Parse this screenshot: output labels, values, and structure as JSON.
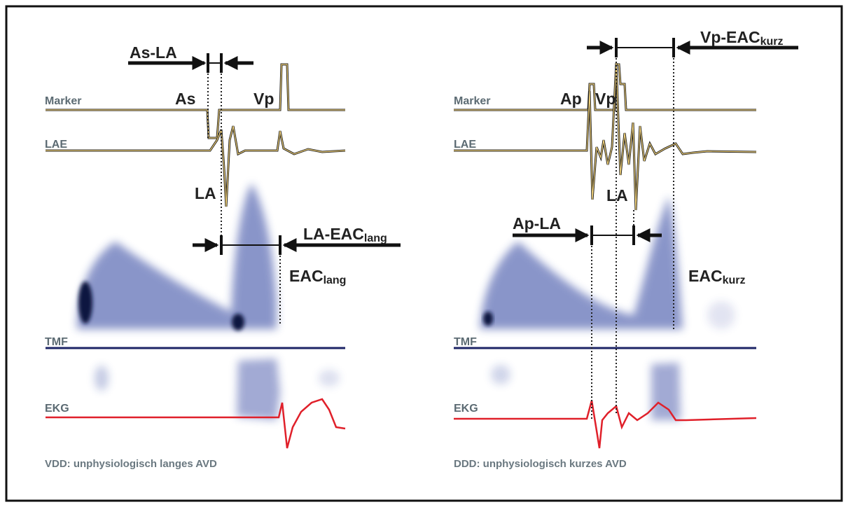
{
  "panels": [
    {
      "caption": "VDD: unphysiologisch langes AVD",
      "trace_labels": [
        "Marker",
        "LAE",
        "TMF",
        "EKG"
      ],
      "annotations": [
        {
          "text": "As-LA"
        },
        {
          "text": "As"
        },
        {
          "text": "Vp"
        },
        {
          "text": "LA"
        },
        {
          "text": "LA-EAC",
          "sub": "lang"
        },
        {
          "text": "EAC",
          "sub": "lang"
        }
      ]
    },
    {
      "caption": "DDD: unphysiologisch kurzes AVD",
      "trace_labels": [
        "Marker",
        "LAE",
        "TMF",
        "EKG"
      ],
      "annotations": [
        {
          "text": "Vp-EAC",
          "sub": "kurz"
        },
        {
          "text": "Ap"
        },
        {
          "text": "Vp"
        },
        {
          "text": "LA"
        },
        {
          "text": "Ap-LA"
        },
        {
          "text": "EAC",
          "sub": "kurz"
        }
      ]
    }
  ]
}
